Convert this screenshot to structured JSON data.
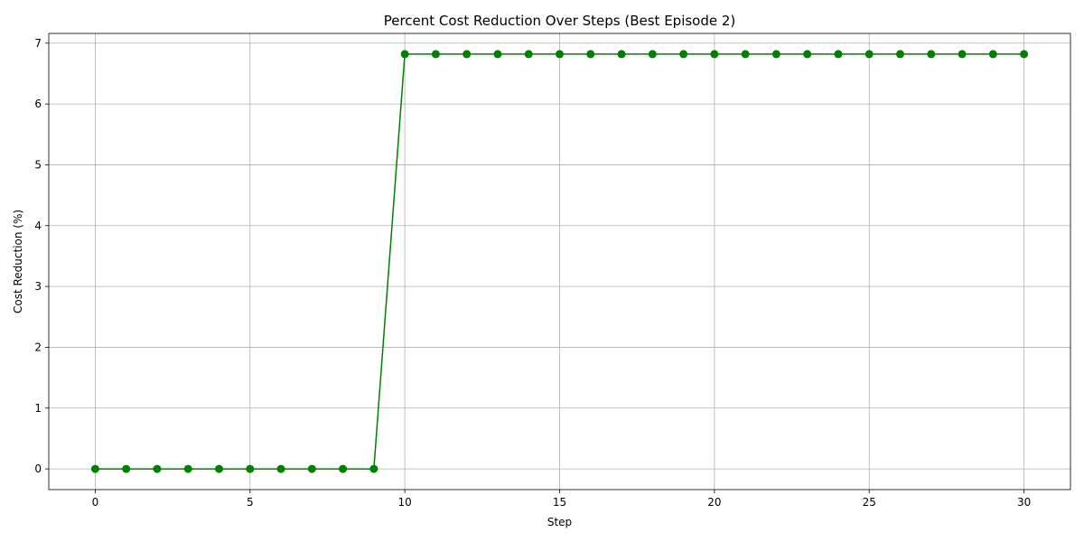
{
  "chart_data": {
    "type": "line",
    "title": "Percent Cost Reduction Over Steps (Best Episode 2)",
    "xlabel": "Step",
    "ylabel": "Cost Reduction (%)",
    "xlim": [
      -1.5,
      31.5
    ],
    "ylim": [
      -0.34,
      7.16
    ],
    "xticks": [
      0,
      5,
      10,
      15,
      20,
      25,
      30
    ],
    "yticks": [
      0,
      1,
      2,
      3,
      4,
      5,
      6,
      7
    ],
    "grid": true,
    "line_color": "#008000",
    "marker": "circle",
    "series": [
      {
        "x": [
          0,
          1,
          2,
          3,
          4,
          5,
          6,
          7,
          8,
          9,
          10,
          11,
          12,
          13,
          14,
          15,
          16,
          17,
          18,
          19,
          20,
          21,
          22,
          23,
          24,
          25,
          26,
          27,
          28,
          29,
          30
        ],
        "values": [
          0,
          0,
          0,
          0,
          0,
          0,
          0,
          0,
          0,
          0,
          6.82,
          6.82,
          6.82,
          6.82,
          6.82,
          6.82,
          6.82,
          6.82,
          6.82,
          6.82,
          6.82,
          6.82,
          6.82,
          6.82,
          6.82,
          6.82,
          6.82,
          6.82,
          6.82,
          6.82,
          6.82
        ]
      }
    ]
  }
}
